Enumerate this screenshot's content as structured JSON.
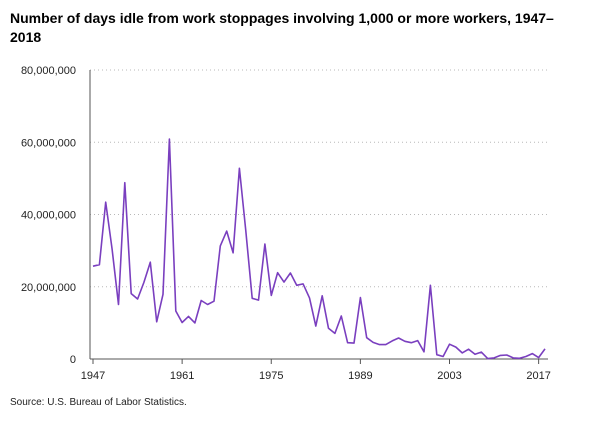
{
  "title": "Number of days idle from work stoppages involving 1,000 or more workers, 1947–2018",
  "source": "Source: U.S. Bureau of Labor Statistics.",
  "chart_data": {
    "type": "line",
    "title": "Number of days idle from work stoppages involving 1,000 or more workers, 1947–2018",
    "xlabel": "",
    "ylabel": "",
    "xlim": [
      1947,
      2018
    ],
    "ylim": [
      0,
      80000000
    ],
    "y_ticks": [
      0,
      20000000,
      40000000,
      60000000,
      80000000
    ],
    "y_tick_labels": [
      "0",
      "20,000,000",
      "40,000,000",
      "60,000,000",
      "80,000,000"
    ],
    "x_ticks": [
      1947,
      1961,
      1975,
      1989,
      2003,
      2017
    ],
    "x_tick_labels": [
      "1947",
      "1961",
      "1975",
      "1989",
      "2003",
      "2017"
    ],
    "grid": "horizontal dotted",
    "legend": "none",
    "series": [
      {
        "color": "#7a3fbf",
        "x": [
          1947,
          1948,
          1949,
          1950,
          1951,
          1952,
          1953,
          1954,
          1955,
          1956,
          1957,
          1958,
          1959,
          1960,
          1961,
          1962,
          1963,
          1964,
          1965,
          1966,
          1967,
          1968,
          1969,
          1970,
          1971,
          1972,
          1973,
          1974,
          1975,
          1976,
          1977,
          1978,
          1979,
          1980,
          1981,
          1982,
          1983,
          1984,
          1985,
          1986,
          1987,
          1988,
          1989,
          1990,
          1991,
          1992,
          1993,
          1994,
          1995,
          1996,
          1997,
          1998,
          1999,
          2000,
          2001,
          2002,
          2003,
          2004,
          2005,
          2006,
          2007,
          2008,
          2009,
          2010,
          2011,
          2012,
          2013,
          2014,
          2015,
          2016,
          2017,
          2018
        ],
        "values": [
          25700000,
          26100000,
          43400000,
          30400000,
          15100000,
          48800000,
          18100000,
          16600000,
          21200000,
          26800000,
          10300000,
          17900000,
          60900000,
          13300000,
          10100000,
          11800000,
          10000000,
          16200000,
          15100000,
          16000000,
          31300000,
          35400000,
          29400000,
          52800000,
          35500000,
          16800000,
          16300000,
          31800000,
          17600000,
          23900000,
          21300000,
          23800000,
          20400000,
          20800000,
          16900000,
          9100000,
          17500000,
          8500000,
          7100000,
          11900000,
          4500000,
          4400000,
          17000000,
          5900000,
          4600000,
          4000000,
          4000000,
          5000000,
          5800000,
          4900000,
          4500000,
          5100000,
          2000000,
          20400000,
          1200000,
          700000,
          4100000,
          3300000,
          1700000,
          2700000,
          1300000,
          1900000,
          100000,
          300000,
          1000000,
          1100000,
          300000,
          200000,
          700000,
          1500000,
          400000,
          2800000
        ]
      }
    ]
  }
}
